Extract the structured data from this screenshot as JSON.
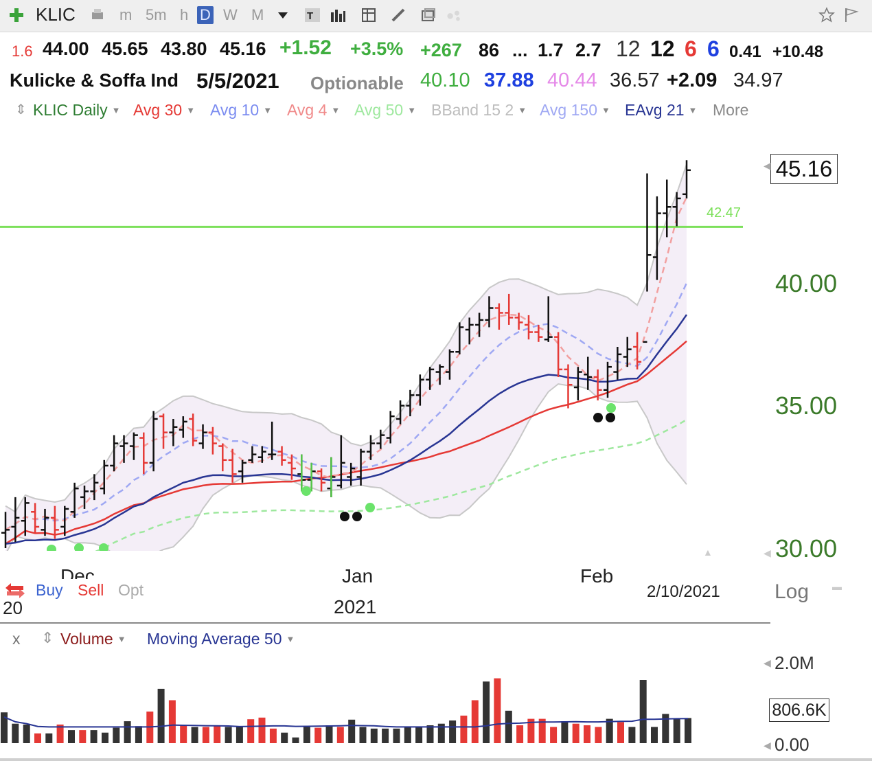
{
  "toolbar": {
    "symbol": "KLIC",
    "intervals": [
      "m",
      "5m",
      "h",
      "D",
      "W",
      "M"
    ],
    "selected_interval": "D",
    "icons": [
      "add-icon",
      "print-icon",
      "dropdown-icon",
      "text-icon",
      "bar-chart-icon",
      "table-icon",
      "pencil-icon",
      "window-icon",
      "dots-icon",
      "star-icon",
      "flag-icon"
    ]
  },
  "quote": {
    "row1": [
      "1.6",
      "44.00",
      "45.65",
      "43.80",
      "45.16",
      "+1.52",
      "+3.5%",
      "+267",
      "86",
      "...",
      "1.7",
      "2.7",
      "12",
      "12",
      "6",
      "6",
      "0.41",
      "+10.48"
    ],
    "name": "Kulicke & Soffa Ind",
    "date": "5/5/2021",
    "optionable": "Optionable",
    "row2": [
      "40.10",
      "37.88",
      "40.44",
      "36.57",
      "+2.09",
      "34.97"
    ]
  },
  "legend": {
    "items": [
      {
        "label": "KLIC Daily",
        "color": "#2e7d32"
      },
      {
        "label": "Avg 30",
        "color": "#e53935"
      },
      {
        "label": "Avg 10",
        "color": "#7b8cf0"
      },
      {
        "label": "Avg 4",
        "color": "#f08a8a"
      },
      {
        "label": "Avg 50",
        "color": "#9ee89e"
      },
      {
        "label": "BBand 15 2",
        "color": "#bdbdbd"
      },
      {
        "label": "Avg 150",
        "color": "#9fa8f3"
      },
      {
        "label": "EAvg 21",
        "color": "#283593"
      }
    ],
    "more": "More"
  },
  "chart_data": [
    {
      "type": "ohlc",
      "symbol": "KLIC",
      "period": "Daily",
      "last_price": "45.16",
      "y_axis_labels": [
        "45.16",
        "40.00",
        "35.00",
        "30.00"
      ],
      "y_scale": "log",
      "ylim": [
        30,
        46
      ],
      "horizontal_line": {
        "value": 42.47,
        "label": "42.47",
        "color": "#7ce05a"
      },
      "x_labels": [
        "Dec",
        "Jan",
        "Feb"
      ],
      "x_sublabels": [
        "20",
        "2021"
      ],
      "cursor_date": "2/10/2021",
      "scale_label": "Log",
      "buttons": [
        "Buy",
        "Sell",
        "Opt"
      ],
      "bars": [
        {
          "o": 30.5,
          "h": 31.2,
          "l": 30.0,
          "c": 30.6,
          "up": true
        },
        {
          "o": 30.7,
          "h": 31.7,
          "l": 30.2,
          "c": 31.0,
          "up": true
        },
        {
          "o": 30.9,
          "h": 31.7,
          "l": 30.4,
          "c": 31.5,
          "up": true
        },
        {
          "o": 31.2,
          "h": 31.5,
          "l": 30.5,
          "c": 30.7,
          "up": false
        },
        {
          "o": 30.6,
          "h": 31.3,
          "l": 30.4,
          "c": 31.0,
          "up": true
        },
        {
          "o": 31.0,
          "h": 31.4,
          "l": 30.3,
          "c": 30.6,
          "up": false
        },
        {
          "o": 30.7,
          "h": 31.4,
          "l": 30.4,
          "c": 31.3,
          "up": true
        },
        {
          "o": 31.2,
          "h": 32.2,
          "l": 31.0,
          "c": 32.0,
          "up": true
        },
        {
          "o": 31.7,
          "h": 32.1,
          "l": 31.3,
          "c": 31.9,
          "up": true
        },
        {
          "o": 31.9,
          "h": 32.5,
          "l": 31.6,
          "c": 32.2,
          "up": true
        },
        {
          "o": 32.0,
          "h": 33.0,
          "l": 31.8,
          "c": 32.8,
          "up": true
        },
        {
          "o": 32.8,
          "h": 33.9,
          "l": 32.6,
          "c": 33.6,
          "up": true
        },
        {
          "o": 33.5,
          "h": 33.9,
          "l": 32.9,
          "c": 33.6,
          "up": true
        },
        {
          "o": 33.5,
          "h": 34.0,
          "l": 33.0,
          "c": 33.9,
          "up": true
        },
        {
          "o": 33.8,
          "h": 34.0,
          "l": 32.5,
          "c": 32.9,
          "up": false
        },
        {
          "o": 32.9,
          "h": 34.8,
          "l": 32.6,
          "c": 34.5,
          "up": true
        },
        {
          "o": 34.6,
          "h": 34.7,
          "l": 33.4,
          "c": 34.0,
          "up": false
        },
        {
          "o": 34.0,
          "h": 34.5,
          "l": 33.5,
          "c": 34.2,
          "up": true
        },
        {
          "o": 34.1,
          "h": 34.6,
          "l": 33.8,
          "c": 34.4,
          "up": true
        },
        {
          "o": 34.5,
          "h": 34.7,
          "l": 33.5,
          "c": 33.7,
          "up": false
        },
        {
          "o": 33.6,
          "h": 34.3,
          "l": 33.4,
          "c": 34.0,
          "up": true
        },
        {
          "o": 34.0,
          "h": 34.2,
          "l": 33.2,
          "c": 33.6,
          "up": false
        },
        {
          "o": 33.5,
          "h": 33.6,
          "l": 32.6,
          "c": 33.0,
          "up": false
        },
        {
          "o": 33.0,
          "h": 33.4,
          "l": 32.2,
          "c": 32.5,
          "up": false
        },
        {
          "o": 32.6,
          "h": 33.0,
          "l": 32.2,
          "c": 32.9,
          "up": true
        },
        {
          "o": 33.0,
          "h": 33.5,
          "l": 32.9,
          "c": 33.2,
          "up": true
        },
        {
          "o": 33.1,
          "h": 33.5,
          "l": 32.9,
          "c": 33.3,
          "up": true
        },
        {
          "o": 33.2,
          "h": 34.4,
          "l": 33.0,
          "c": 33.2,
          "up": true
        },
        {
          "o": 33.3,
          "h": 33.5,
          "l": 32.8,
          "c": 33.0,
          "up": false
        },
        {
          "o": 32.9,
          "h": 33.2,
          "l": 32.3,
          "c": 32.7,
          "up": false
        },
        {
          "o": 32.5,
          "h": 33.2,
          "l": 31.9,
          "c": 32.3,
          "up": true
        },
        {
          "o": 32.3,
          "h": 32.9,
          "l": 31.9,
          "c": 32.6,
          "up": true
        },
        {
          "o": 32.6,
          "h": 32.7,
          "l": 31.9,
          "c": 32.2,
          "up": false
        },
        {
          "o": 32.0,
          "h": 33.1,
          "l": 31.7,
          "c": 32.4,
          "up": true
        },
        {
          "o": 32.1,
          "h": 33.9,
          "l": 32.0,
          "c": 32.9,
          "up": true
        },
        {
          "o": 32.4,
          "h": 32.9,
          "l": 32.1,
          "c": 32.7,
          "up": true
        },
        {
          "o": 32.4,
          "h": 33.4,
          "l": 32.1,
          "c": 33.3,
          "up": true
        },
        {
          "o": 33.3,
          "h": 33.9,
          "l": 33.0,
          "c": 33.6,
          "up": true
        },
        {
          "o": 33.6,
          "h": 34.1,
          "l": 33.4,
          "c": 33.9,
          "up": true
        },
        {
          "o": 33.8,
          "h": 34.8,
          "l": 33.6,
          "c": 34.6,
          "up": true
        },
        {
          "o": 34.5,
          "h": 35.2,
          "l": 34.3,
          "c": 35.0,
          "up": true
        },
        {
          "o": 35.0,
          "h": 35.6,
          "l": 34.6,
          "c": 35.4,
          "up": true
        },
        {
          "o": 35.4,
          "h": 36.2,
          "l": 35.0,
          "c": 36.0,
          "up": true
        },
        {
          "o": 36.0,
          "h": 36.5,
          "l": 35.6,
          "c": 36.4,
          "up": true
        },
        {
          "o": 36.3,
          "h": 36.6,
          "l": 35.8,
          "c": 36.5,
          "up": true
        },
        {
          "o": 36.3,
          "h": 37.2,
          "l": 36.0,
          "c": 37.1,
          "up": true
        },
        {
          "o": 37.1,
          "h": 38.3,
          "l": 37.0,
          "c": 38.1,
          "up": true
        },
        {
          "o": 38.0,
          "h": 38.5,
          "l": 37.4,
          "c": 38.2,
          "up": true
        },
        {
          "o": 38.2,
          "h": 38.7,
          "l": 37.7,
          "c": 38.4,
          "up": true
        },
        {
          "o": 38.4,
          "h": 39.4,
          "l": 38.1,
          "c": 38.9,
          "up": true
        },
        {
          "o": 38.9,
          "h": 39.1,
          "l": 38.0,
          "c": 38.7,
          "up": false
        },
        {
          "o": 38.7,
          "h": 39.5,
          "l": 38.2,
          "c": 38.5,
          "up": false
        },
        {
          "o": 38.5,
          "h": 38.7,
          "l": 38.0,
          "c": 38.3,
          "up": false
        },
        {
          "o": 38.2,
          "h": 38.6,
          "l": 37.6,
          "c": 37.9,
          "up": false
        },
        {
          "o": 37.9,
          "h": 38.2,
          "l": 37.5,
          "c": 37.7,
          "up": false
        },
        {
          "o": 37.6,
          "h": 39.4,
          "l": 37.5,
          "c": 37.7,
          "up": true
        },
        {
          "o": 37.7,
          "h": 37.9,
          "l": 36.1,
          "c": 36.4,
          "up": false
        },
        {
          "o": 36.4,
          "h": 36.6,
          "l": 34.9,
          "c": 35.8,
          "up": false
        },
        {
          "o": 35.7,
          "h": 36.5,
          "l": 35.2,
          "c": 36.3,
          "up": true
        },
        {
          "o": 36.2,
          "h": 36.9,
          "l": 35.6,
          "c": 36.1,
          "up": true
        },
        {
          "o": 36.1,
          "h": 36.4,
          "l": 35.2,
          "c": 35.6,
          "up": false
        },
        {
          "o": 35.6,
          "h": 36.7,
          "l": 35.3,
          "c": 36.5,
          "up": true
        },
        {
          "o": 36.3,
          "h": 37.3,
          "l": 36.0,
          "c": 37.0,
          "up": true
        },
        {
          "o": 36.9,
          "h": 37.7,
          "l": 36.5,
          "c": 37.2,
          "up": true
        },
        {
          "o": 37.3,
          "h": 37.9,
          "l": 36.4,
          "c": 36.7,
          "up": false
        },
        {
          "o": 37.5,
          "h": 45.0,
          "l": 39.6,
          "c": 41.2,
          "up": true
        },
        {
          "o": 41.1,
          "h": 43.9,
          "l": 40.1,
          "c": 43.1,
          "up": true
        },
        {
          "o": 43.1,
          "h": 44.7,
          "l": 42.0,
          "c": 43.4,
          "up": true
        },
        {
          "o": 43.4,
          "h": 44.1,
          "l": 42.5,
          "c": 43.8,
          "up": true
        },
        {
          "o": 44.0,
          "h": 45.65,
          "l": 43.8,
          "c": 45.16,
          "up": true
        }
      ]
    },
    {
      "type": "bar",
      "title": "Volume",
      "overlay": "Moving Average 50",
      "y_axis_labels": [
        "2.0M",
        "806.6K",
        "0.00"
      ],
      "moving_average_label": "806.6K",
      "values": [
        {
          "v": 0.76,
          "up": true
        },
        {
          "v": 0.48,
          "up": true
        },
        {
          "v": 0.46,
          "up": true
        },
        {
          "v": 0.24,
          "up": false
        },
        {
          "v": 0.24,
          "up": true
        },
        {
          "v": 0.46,
          "up": false
        },
        {
          "v": 0.32,
          "up": true
        },
        {
          "v": 0.32,
          "up": false
        },
        {
          "v": 0.32,
          "up": true
        },
        {
          "v": 0.26,
          "up": true
        },
        {
          "v": 0.38,
          "up": true
        },
        {
          "v": 0.54,
          "up": true
        },
        {
          "v": 0.42,
          "up": true
        },
        {
          "v": 0.78,
          "up": false
        },
        {
          "v": 1.34,
          "up": true
        },
        {
          "v": 1.06,
          "up": false
        },
        {
          "v": 0.44,
          "up": false
        },
        {
          "v": 0.4,
          "up": true
        },
        {
          "v": 0.4,
          "up": false
        },
        {
          "v": 0.44,
          "up": false
        },
        {
          "v": 0.4,
          "up": true
        },
        {
          "v": 0.4,
          "up": true
        },
        {
          "v": 0.59,
          "up": false
        },
        {
          "v": 0.63,
          "up": false
        },
        {
          "v": 0.36,
          "up": false
        },
        {
          "v": 0.26,
          "up": true
        },
        {
          "v": 0.14,
          "up": true
        },
        {
          "v": 0.4,
          "up": true
        },
        {
          "v": 0.38,
          "up": false
        },
        {
          "v": 0.44,
          "up": true
        },
        {
          "v": 0.4,
          "up": false
        },
        {
          "v": 0.58,
          "up": true
        },
        {
          "v": 0.4,
          "up": true
        },
        {
          "v": 0.36,
          "up": true
        },
        {
          "v": 0.36,
          "up": true
        },
        {
          "v": 0.36,
          "up": true
        },
        {
          "v": 0.4,
          "up": true
        },
        {
          "v": 0.4,
          "up": true
        },
        {
          "v": 0.44,
          "up": true
        },
        {
          "v": 0.48,
          "up": true
        },
        {
          "v": 0.56,
          "up": true
        },
        {
          "v": 0.68,
          "up": false
        },
        {
          "v": 1.06,
          "up": false
        },
        {
          "v": 1.52,
          "up": true
        },
        {
          "v": 1.6,
          "up": false
        },
        {
          "v": 0.8,
          "up": true
        },
        {
          "v": 0.44,
          "up": false
        },
        {
          "v": 0.6,
          "up": false
        },
        {
          "v": 0.6,
          "up": false
        },
        {
          "v": 0.4,
          "up": false
        },
        {
          "v": 0.54,
          "up": true
        },
        {
          "v": 0.48,
          "up": false
        },
        {
          "v": 0.44,
          "up": false
        },
        {
          "v": 0.4,
          "up": false
        },
        {
          "v": 0.6,
          "up": true
        },
        {
          "v": 0.52,
          "up": false
        },
        {
          "v": 0.4,
          "up": true
        },
        {
          "v": 1.56,
          "up": true
        },
        {
          "v": 0.4,
          "up": true
        },
        {
          "v": 0.72,
          "up": true
        },
        {
          "v": 0.6,
          "up": true
        },
        {
          "v": 0.62,
          "up": true
        }
      ]
    }
  ],
  "signals": {
    "green_dots": "buy-signal",
    "black_dots": "signal-dot"
  }
}
